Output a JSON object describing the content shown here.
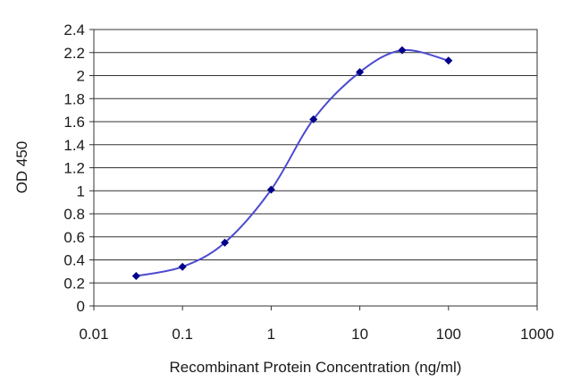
{
  "chart_data": {
    "type": "line",
    "title": "",
    "xlabel": "Recombinant Protein Concentration (ng/ml)",
    "ylabel": "OD 450",
    "x_scale": "log",
    "xlim": [
      0.01,
      1000
    ],
    "ylim": [
      0,
      2.4
    ],
    "x_ticks": [
      "0.01",
      "0.1",
      "1",
      "10",
      "100",
      "1000"
    ],
    "y_ticks": [
      "0",
      "0.2",
      "0.4",
      "0.6",
      "0.8",
      "1",
      "1.2",
      "1.4",
      "1.6",
      "1.8",
      "2",
      "2.2",
      "2.4"
    ],
    "grid": "horizontal",
    "legend": "none",
    "series": [
      {
        "x": [
          0.03,
          0.1,
          0.3,
          1,
          3,
          10,
          30,
          100
        ],
        "y": [
          0.26,
          0.34,
          0.55,
          1.01,
          1.62,
          2.03,
          2.22,
          2.13
        ],
        "color": "#00008b"
      }
    ]
  }
}
